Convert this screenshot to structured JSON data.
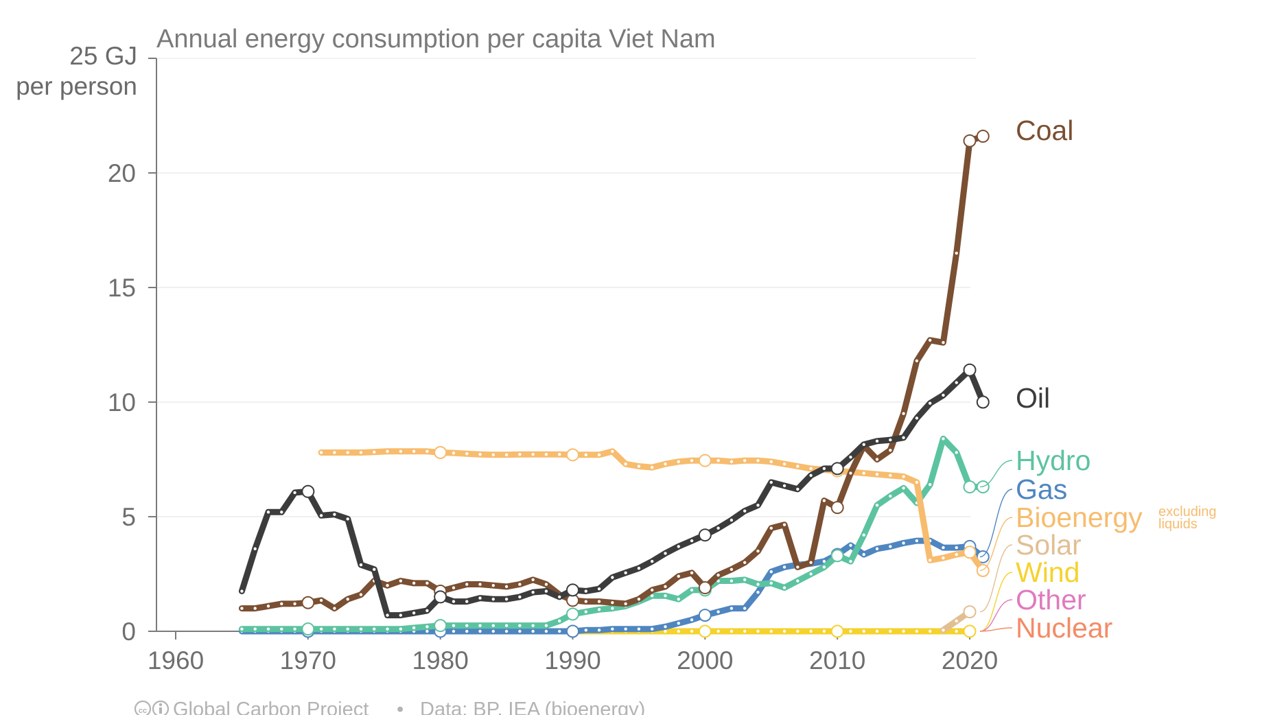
{
  "chart_data": {
    "type": "line",
    "title": "Annual energy consumption per capita Viet Nam",
    "ylabel_line1": "25 GJ",
    "ylabel_line2": "per person",
    "xlim": [
      1958,
      2021
    ],
    "ylim": [
      0,
      25
    ],
    "x_ticks": [
      1960,
      1970,
      1980,
      1990,
      2000,
      2010,
      2020
    ],
    "y_ticks": [
      0,
      5,
      10,
      15,
      20
    ],
    "grid": true,
    "series": [
      {
        "name": "Coal",
        "color": "#7a4f32",
        "start_year": 1965,
        "values": [
          1.0,
          1.0,
          1.1,
          1.2,
          1.2,
          1.25,
          1.35,
          1.0,
          1.4,
          1.6,
          2.2,
          2.0,
          2.2,
          2.1,
          2.1,
          1.75,
          1.9,
          2.05,
          2.05,
          2.0,
          1.95,
          2.05,
          2.25,
          2.05,
          1.6,
          1.35,
          1.3,
          1.3,
          1.25,
          1.2,
          1.4,
          1.8,
          1.95,
          2.4,
          2.55,
          1.9,
          2.45,
          2.7,
          3.0,
          3.5,
          4.5,
          4.65,
          2.8,
          3.0,
          5.7,
          5.4,
          6.9,
          8.1,
          7.5,
          7.9,
          9.5,
          11.8,
          12.7,
          12.6,
          16.5,
          21.4,
          21.6
        ]
      },
      {
        "name": "Oil",
        "color": "#3c3c3c",
        "start_year": 1965,
        "values": [
          1.75,
          3.6,
          5.2,
          5.2,
          6.05,
          6.1,
          5.05,
          5.1,
          4.9,
          2.9,
          2.7,
          0.7,
          0.7,
          0.8,
          0.9,
          1.5,
          1.3,
          1.3,
          1.45,
          1.4,
          1.4,
          1.5,
          1.7,
          1.75,
          1.5,
          1.8,
          1.75,
          1.85,
          2.35,
          2.55,
          2.75,
          3.05,
          3.4,
          3.7,
          3.95,
          4.2,
          4.5,
          4.85,
          5.25,
          5.5,
          6.5,
          6.35,
          6.2,
          6.8,
          7.1,
          7.1,
          7.6,
          8.15,
          8.3,
          8.35,
          8.45,
          9.3,
          9.95,
          10.3,
          10.85,
          11.4,
          10.0
        ]
      },
      {
        "name": "Hydro",
        "color": "#5cc3a0",
        "start_year": 1965,
        "values": [
          0.1,
          0.1,
          0.1,
          0.1,
          0.1,
          0.1,
          0.1,
          0.1,
          0.1,
          0.1,
          0.1,
          0.1,
          0.1,
          0.15,
          0.2,
          0.25,
          0.25,
          0.25,
          0.25,
          0.25,
          0.25,
          0.25,
          0.25,
          0.25,
          0.45,
          0.75,
          0.85,
          0.95,
          1.0,
          1.1,
          1.3,
          1.55,
          1.55,
          1.4,
          1.8,
          1.8,
          2.2,
          2.2,
          2.25,
          2.05,
          2.1,
          1.9,
          2.2,
          2.5,
          2.8,
          3.3,
          3.05,
          4.2,
          5.5,
          5.9,
          6.25,
          5.6,
          6.4,
          8.4,
          7.8,
          6.3,
          6.3
        ]
      },
      {
        "name": "Gas",
        "color": "#4f86c0",
        "start_year": 1965,
        "values": [
          0,
          0,
          0,
          0,
          0,
          0,
          0,
          0,
          0,
          0,
          0,
          0,
          0,
          0,
          0,
          0,
          0,
          0,
          0,
          0,
          0,
          0,
          0,
          0,
          0,
          0,
          0.05,
          0.05,
          0.1,
          0.1,
          0.1,
          0.1,
          0.2,
          0.35,
          0.5,
          0.7,
          0.85,
          1.0,
          1.0,
          1.7,
          2.6,
          2.8,
          2.9,
          2.95,
          3.05,
          3.35,
          3.75,
          3.35,
          3.6,
          3.7,
          3.85,
          3.95,
          3.95,
          3.65,
          3.65,
          3.7,
          3.25
        ]
      },
      {
        "name": "Bioenergy",
        "color": "#f7bc6e",
        "start_year": 1971,
        "values": [
          7.8,
          7.8,
          7.8,
          7.8,
          7.82,
          7.85,
          7.85,
          7.85,
          7.85,
          7.8,
          7.78,
          7.75,
          7.72,
          7.7,
          7.7,
          7.72,
          7.72,
          7.72,
          7.72,
          7.7,
          7.7,
          7.7,
          7.85,
          7.3,
          7.2,
          7.15,
          7.3,
          7.4,
          7.45,
          7.45,
          7.45,
          7.4,
          7.45,
          7.45,
          7.4,
          7.3,
          7.2,
          7.1,
          7.05,
          7.0,
          6.95,
          6.9,
          6.85,
          6.8,
          6.75,
          6.5,
          3.1,
          3.2,
          3.35,
          3.45,
          2.65
        ]
      },
      {
        "name": "Solar",
        "color": "#e1bf93",
        "start_year": 2018,
        "values": [
          0.05,
          0.45,
          0.85
        ]
      },
      {
        "name": "Wind",
        "color": "#f5d22d",
        "start_year": 1981,
        "values": [
          0,
          0,
          0,
          0,
          0,
          0,
          0,
          0,
          0,
          0,
          0,
          0,
          0,
          0,
          0,
          0,
          0,
          0,
          0,
          0,
          0,
          0,
          0,
          0,
          0,
          0,
          0,
          0,
          0,
          0,
          0,
          0,
          0,
          0,
          0,
          0,
          0,
          0,
          0,
          0
        ]
      }
    ],
    "legend": [
      {
        "name": "Coal",
        "color": "#7a4f32"
      },
      {
        "name": "Oil",
        "color": "#3c3c3c"
      },
      {
        "name": "Hydro",
        "color": "#5cc3a0"
      },
      {
        "name": "Gas",
        "color": "#4f86c0"
      },
      {
        "name": "Bioenergy",
        "color": "#f7bc6e",
        "note_line1": "excluding",
        "note_line2": "liquids"
      },
      {
        "name": "Solar",
        "color": "#e1bf93"
      },
      {
        "name": "Wind",
        "color": "#f5d22d"
      },
      {
        "name": "Other",
        "color": "#e07bbd"
      },
      {
        "name": "Nuclear",
        "color": "#f48b66"
      }
    ],
    "footer": {
      "credit": "Global Carbon Project",
      "separator": "•",
      "source": "Data: BP, IEA (bioenergy)"
    }
  }
}
